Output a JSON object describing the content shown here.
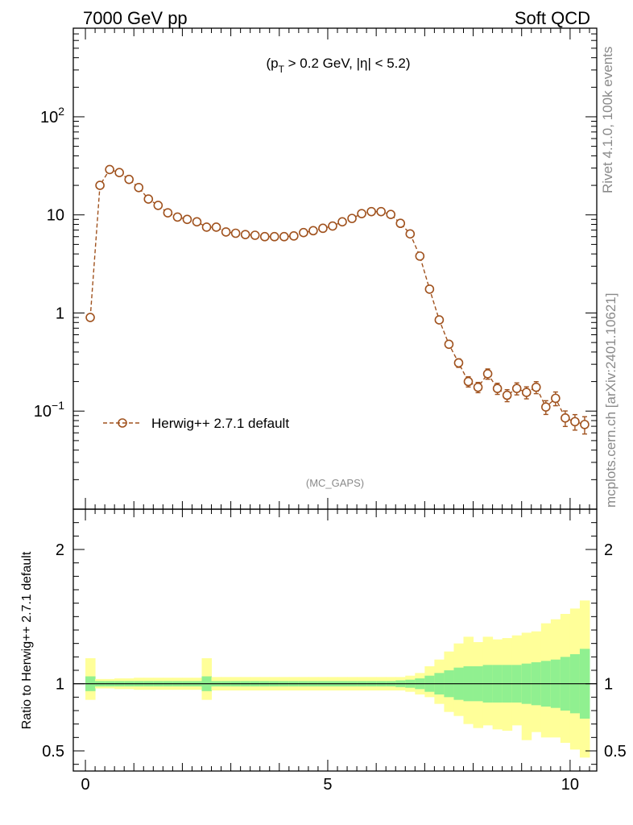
{
  "header": {
    "left_title": "7000 GeV pp",
    "right_title": "Soft QCD"
  },
  "side_text": {
    "rivet": "Rivet 4.1.0,  100k events",
    "mcplots": "mcplots.cern.ch [arXiv:2401.10621]"
  },
  "chart_data": [
    {
      "type": "scatter",
      "panel": "main",
      "title": "7000 GeV pp",
      "cuts_label": {
        "pre": "(p",
        "sub": "T",
        "post": " > 0.2 GeV, |η| < 5.2)"
      },
      "analysis_label": "(MC_GAPS)",
      "yscale": "log",
      "ylim": [
        0.01,
        800
      ],
      "xlim": [
        -0.25,
        10.55
      ],
      "yticks": [
        {
          "value": 0.1,
          "label_base": "10",
          "label_exp": "−1"
        },
        {
          "value": 1,
          "label_base": "1",
          "label_exp": ""
        },
        {
          "value": 10,
          "label_base": "10",
          "label_exp": ""
        },
        {
          "value": 100,
          "label_base": "10",
          "label_exp": "2"
        }
      ],
      "legend": {
        "placement": "bottom-left",
        "label": "Herwig++ 2.7.1 default"
      },
      "series": [
        {
          "name": "Herwig++ 2.7.1 default",
          "color": "#a0521e",
          "x": [
            0.1,
            0.3,
            0.5,
            0.7,
            0.9,
            1.1,
            1.3,
            1.5,
            1.7,
            1.9,
            2.1,
            2.3,
            2.5,
            2.7,
            2.9,
            3.1,
            3.3,
            3.5,
            3.7,
            3.9,
            4.1,
            4.3,
            4.5,
            4.7,
            4.9,
            5.1,
            5.3,
            5.5,
            5.7,
            5.9,
            6.1,
            6.3,
            6.5,
            6.7,
            6.9,
            7.1,
            7.3,
            7.5,
            7.7,
            7.9,
            8.1,
            8.3,
            8.5,
            8.7,
            8.9,
            9.1,
            9.3,
            9.5,
            9.7,
            9.9,
            10.1,
            10.3
          ],
          "y": [
            0.9,
            20,
            29,
            27,
            23,
            19,
            14.5,
            12.5,
            10.5,
            9.5,
            9,
            8.5,
            7.5,
            7.5,
            6.7,
            6.5,
            6.3,
            6.2,
            6.0,
            6.0,
            6.0,
            6.1,
            6.6,
            6.9,
            7.3,
            7.7,
            8.5,
            9.2,
            10.3,
            10.8,
            10.8,
            10.1,
            8.2,
            6.4,
            3.8,
            1.75,
            0.85,
            0.48,
            0.31,
            0.2,
            0.175,
            0.24,
            0.17,
            0.145,
            0.17,
            0.155,
            0.175,
            0.11,
            0.135,
            0.085,
            0.078,
            0.073
          ],
          "yerr_rel": [
            0.05,
            0.02,
            0.02,
            0.02,
            0.02,
            0.02,
            0.02,
            0.02,
            0.02,
            0.02,
            0.02,
            0.02,
            0.03,
            0.03,
            0.03,
            0.03,
            0.03,
            0.03,
            0.03,
            0.03,
            0.03,
            0.03,
            0.03,
            0.03,
            0.03,
            0.03,
            0.03,
            0.03,
            0.03,
            0.03,
            0.03,
            0.03,
            0.03,
            0.04,
            0.04,
            0.05,
            0.06,
            0.08,
            0.1,
            0.12,
            0.12,
            0.12,
            0.13,
            0.14,
            0.14,
            0.14,
            0.14,
            0.16,
            0.16,
            0.18,
            0.18,
            0.2
          ]
        }
      ]
    },
    {
      "type": "area",
      "panel": "ratio",
      "ylabel": "Ratio to Herwig++ 2.7.1 default",
      "ylim": [
        0.35,
        2.3
      ],
      "xlim": [
        -0.25,
        10.55
      ],
      "xticks": [
        0,
        5,
        10
      ],
      "yticks": [
        0.5,
        1,
        2
      ],
      "reference_line": 1,
      "bin_edges": [
        0,
        0.2,
        0.4,
        0.6,
        0.8,
        1.0,
        1.2,
        1.4,
        1.6,
        1.8,
        2.0,
        2.2,
        2.4,
        2.6,
        2.8,
        3.0,
        3.2,
        3.4,
        3.6,
        3.8,
        4.0,
        4.2,
        4.4,
        4.6,
        4.8,
        5.0,
        5.2,
        5.4,
        5.6,
        5.8,
        6.0,
        6.2,
        6.4,
        6.6,
        6.8,
        7.0,
        7.2,
        7.4,
        7.6,
        7.8,
        8.0,
        8.2,
        8.4,
        8.6,
        8.8,
        9.0,
        9.2,
        9.4,
        9.6,
        9.8,
        10.0,
        10.2,
        10.4
      ],
      "band_inner": [
        0.055,
        0.02,
        0.02,
        0.02,
        0.02,
        0.02,
        0.02,
        0.02,
        0.02,
        0.02,
        0.02,
        0.02,
        0.055,
        0.02,
        0.02,
        0.02,
        0.02,
        0.02,
        0.02,
        0.02,
        0.02,
        0.02,
        0.02,
        0.02,
        0.02,
        0.02,
        0.02,
        0.02,
        0.02,
        0.02,
        0.02,
        0.02,
        0.025,
        0.03,
        0.04,
        0.06,
        0.08,
        0.1,
        0.12,
        0.13,
        0.13,
        0.14,
        0.14,
        0.14,
        0.14,
        0.15,
        0.16,
        0.17,
        0.18,
        0.2,
        0.22,
        0.26
      ],
      "band_outer_up": [
        0.19,
        0.035,
        0.035,
        0.04,
        0.04,
        0.045,
        0.045,
        0.045,
        0.045,
        0.045,
        0.045,
        0.045,
        0.19,
        0.05,
        0.05,
        0.05,
        0.05,
        0.05,
        0.05,
        0.05,
        0.05,
        0.05,
        0.05,
        0.05,
        0.05,
        0.05,
        0.05,
        0.05,
        0.05,
        0.05,
        0.05,
        0.05,
        0.05,
        0.06,
        0.08,
        0.13,
        0.18,
        0.24,
        0.3,
        0.35,
        0.31,
        0.35,
        0.33,
        0.34,
        0.36,
        0.38,
        0.39,
        0.45,
        0.48,
        0.52,
        0.56,
        0.62
      ],
      "band_outer_dn": [
        0.12,
        0.035,
        0.035,
        0.04,
        0.04,
        0.045,
        0.045,
        0.045,
        0.045,
        0.045,
        0.045,
        0.045,
        0.12,
        0.05,
        0.05,
        0.05,
        0.05,
        0.05,
        0.05,
        0.05,
        0.05,
        0.05,
        0.05,
        0.05,
        0.05,
        0.05,
        0.05,
        0.05,
        0.05,
        0.05,
        0.05,
        0.05,
        0.05,
        0.06,
        0.08,
        0.1,
        0.15,
        0.21,
        0.24,
        0.3,
        0.33,
        0.31,
        0.34,
        0.35,
        0.31,
        0.42,
        0.36,
        0.4,
        0.4,
        0.44,
        0.49,
        0.55
      ]
    }
  ],
  "colors": {
    "series": "#a0521e",
    "band_inner": "#90f090",
    "band_outer": "#ffff99",
    "side_text": "#8a8a8a"
  }
}
